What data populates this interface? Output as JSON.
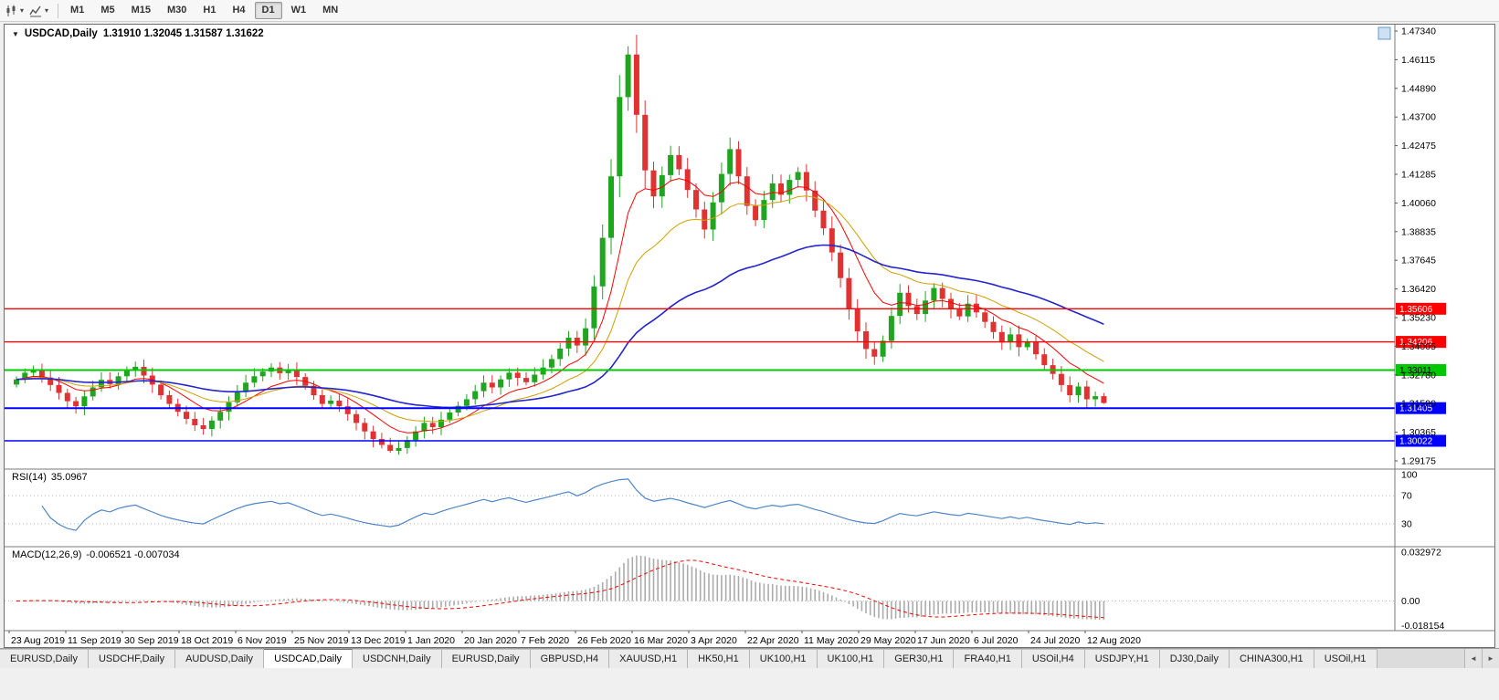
{
  "icons": {
    "caret_down": "▾",
    "triangle_down": "▼",
    "tabs_left": "◄",
    "tabs_right": "►"
  },
  "toolbar": {
    "timeframes": [
      "M1",
      "M5",
      "M15",
      "M30",
      "H1",
      "H4",
      "D1",
      "W1",
      "MN"
    ],
    "active_timeframe": "D1"
  },
  "chart_data": {
    "type": "candlestick",
    "symbol_period": "USDCAD,Daily",
    "ohlc_text": "1.31910 1.32045 1.31587 1.31622",
    "up_color": "#1FA51F",
    "down_color": "#E03232",
    "price_scale": {
      "top_value": 1.4734,
      "bottom_value": 1.29175,
      "labels": [
        "1.47340",
        "1.46115",
        "1.44890",
        "1.43700",
        "1.42475",
        "1.41285",
        "1.40060",
        "1.38835",
        "1.37645",
        "1.36420",
        "1.35230",
        "1.34005",
        "1.32780",
        "1.31590",
        "1.30365",
        "1.29175"
      ]
    },
    "date_labels": [
      "23 Aug 2019",
      "11 Sep 2019",
      "30 Sep 2019",
      "18 Oct 2019",
      "6 Nov 2019",
      "25 Nov 2019",
      "13 Dec 2019",
      "1 Jan 2020",
      "20 Jan 2020",
      "7 Feb 2020",
      "26 Feb 2020",
      "16 Mar 2020",
      "3 Apr 2020",
      "22 Apr 2020",
      "11 May 2020",
      "29 May 2020",
      "17 Jun 2020",
      "6 Jul 2020",
      "24 Jul 2020",
      "12 Aug 2020"
    ],
    "candles": {
      "first_open": 1.324,
      "wick_base": 0.0022,
      "closes": [
        1.3262,
        1.329,
        1.3302,
        1.327,
        1.3238,
        1.3205,
        1.317,
        1.3148,
        1.319,
        1.3228,
        1.326,
        1.3242,
        1.3275,
        1.3298,
        1.3315,
        1.3278,
        1.324,
        1.3195,
        1.3158,
        1.3125,
        1.3095,
        1.3068,
        1.3052,
        1.3088,
        1.3125,
        1.3165,
        1.3208,
        1.3248,
        1.3275,
        1.3295,
        1.3312,
        1.3288,
        1.3302,
        1.3272,
        1.3235,
        1.3195,
        1.3158,
        1.3172,
        1.3148,
        1.3115,
        1.3078,
        1.3042,
        1.301,
        1.2985,
        1.296,
        1.2972,
        1.3005,
        1.3042,
        1.3078,
        1.306,
        1.3092,
        1.3122,
        1.315,
        1.3178,
        1.3212,
        1.3248,
        1.3228,
        1.3262,
        1.329,
        1.3268,
        1.325,
        1.3282,
        1.3312,
        1.3348,
        1.3392,
        1.3438,
        1.3405,
        1.3478,
        1.3655,
        1.386,
        1.412,
        1.4455,
        1.4635,
        1.438,
        1.4145,
        1.4035,
        1.4125,
        1.421,
        1.415,
        1.4062,
        1.398,
        1.3895,
        1.401,
        1.413,
        1.4235,
        1.412,
        1.3995,
        1.3935,
        1.402,
        1.409,
        1.4042,
        1.4105,
        1.4138,
        1.406,
        1.3975,
        1.39,
        1.3798,
        1.369,
        1.3562,
        1.3465,
        1.339,
        1.3358,
        1.3425,
        1.353,
        1.3628,
        1.3572,
        1.3538,
        1.3595,
        1.3648,
        1.3602,
        1.3558,
        1.3528,
        1.3582,
        1.3545,
        1.3505,
        1.3462,
        1.3418,
        1.3452,
        1.3398,
        1.3422,
        1.3368,
        1.3322,
        1.3285,
        1.3238,
        1.3195,
        1.3232,
        1.3178,
        1.3191,
        1.31622
      ],
      "overrides": [
        {
          "index": 72,
          "high": 1.467
        },
        {
          "index": 44,
          "low": 1.2952
        },
        {
          "index": 128,
          "high": 1.32045,
          "low": 1.31587
        }
      ]
    },
    "moving_averages": [
      {
        "period": 9,
        "color": "#FF0000",
        "width": 1
      },
      {
        "period": 18,
        "color": "#CFA000",
        "width": 1
      },
      {
        "period": 45,
        "color": "#2525CD",
        "width": 1.6
      }
    ],
    "horizontal_lines": [
      {
        "price": 1.35606,
        "label": "1.35606",
        "color": "#FF0000",
        "width": 1.4,
        "text_color": "#ffffff"
      },
      {
        "price": 1.34206,
        "label": "1.34206",
        "color": "#FF0000",
        "width": 1.4,
        "text_color": "#ffffff"
      },
      {
        "price": 1.33011,
        "label": "1.33011",
        "color": "#00C800",
        "width": 2,
        "text_color": "#000000"
      },
      {
        "price": 1.31405,
        "label": "1.31405",
        "color": "#0000FF",
        "width": 2,
        "text_color": "#ffffff"
      },
      {
        "price": 1.30022,
        "label": "1.30022",
        "color": "#0000FF",
        "width": 1.6,
        "text_color": "#ffffff"
      }
    ],
    "indicators": {
      "rsi": {
        "label": "RSI(14)",
        "value_text": "35.0967",
        "period": 14,
        "color": "#4F86C6",
        "levels": [
          {
            "value": 100,
            "label": "100",
            "dotted": false
          },
          {
            "value": 70,
            "label": "70",
            "dotted": true
          },
          {
            "value": 30,
            "label": "30",
            "dotted": true
          }
        ]
      },
      "macd": {
        "label": "MACD(12,26,9)",
        "values_text": "-0.006521 -0.007034",
        "fast": 12,
        "slow": 26,
        "signal": 9,
        "scale_top": 0.032972,
        "scale_bottom": -0.018154,
        "hist_color": "#ABABAB",
        "signal_color": "#FF0000",
        "scale_labels": [
          {
            "value": 0.032972,
            "label": "0.032972"
          },
          {
            "value": 0,
            "label": "0.00"
          },
          {
            "value": -0.018154,
            "label": "-0.018154"
          }
        ]
      }
    }
  },
  "tabs": {
    "active_index": 3,
    "items": [
      "EURUSD,Daily",
      "USDCHF,Daily",
      "AUDUSD,Daily",
      "USDCAD,Daily",
      "USDCNH,Daily",
      "EURUSD,Daily",
      "GBPUSD,H4",
      "XAUUSD,H1",
      "HK50,H1",
      "UK100,H1",
      "UK100,H1",
      "GER30,H1",
      "FRA40,H1",
      "USOil,H4",
      "USDJPY,H1",
      "DJ30,Daily",
      "CHINA300,H1",
      "USOil,H1"
    ]
  }
}
